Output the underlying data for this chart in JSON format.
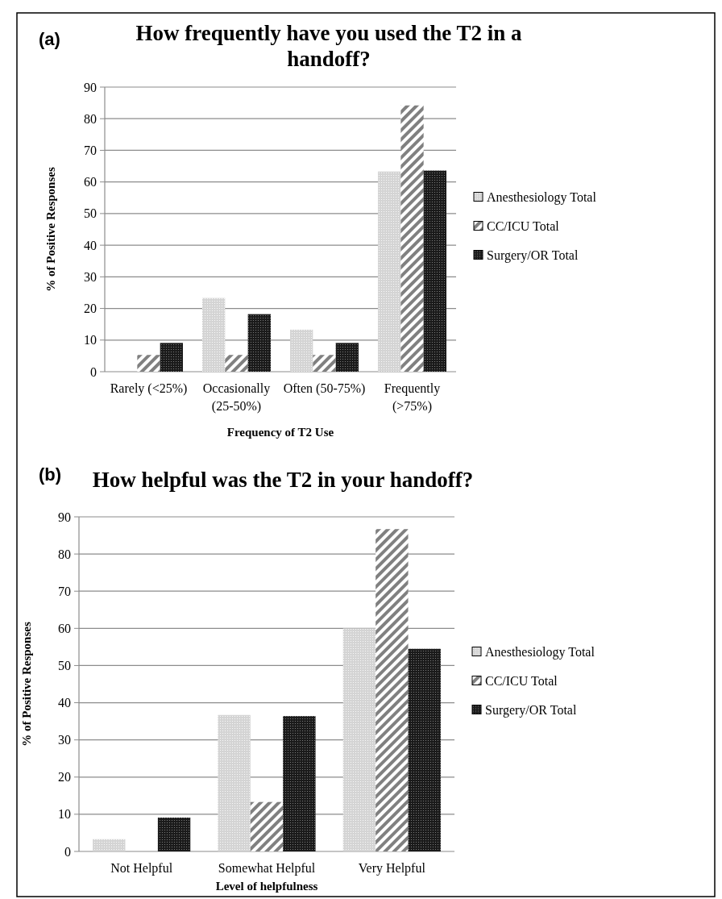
{
  "chart_data": [
    {
      "type": "bar",
      "title": "How frequently have you used the T2 in a handoff?",
      "xlabel": "Frequency of T2 Use",
      "ylabel": "% of Positive Responses",
      "annotations": [
        "(a)"
      ],
      "categories": [
        "Rarely (<25%)",
        "Occasionally (25-50%)",
        "Often (50-75%)",
        "Frequently (>75%)"
      ],
      "series": [
        {
          "name": "Anesthesiology Total",
          "color": "#d4d4d4",
          "values": [
            0,
            23.3,
            13.3,
            63.3
          ]
        },
        {
          "name": "CC/ICU Total",
          "color": "#808080",
          "values": [
            5.3,
            5.3,
            5.3,
            84.2
          ]
        },
        {
          "name": "Surgery/OR Total",
          "color": "#1a1a1a",
          "values": [
            9.1,
            18.2,
            9.1,
            63.6
          ]
        }
      ],
      "ylim": [
        0,
        90
      ],
      "yticks": [
        0,
        10,
        20,
        30,
        40,
        50,
        60,
        70,
        80,
        90
      ],
      "grid": "y",
      "legend": "right"
    },
    {
      "type": "bar",
      "title": "How helpful was the T2 in your handoff?",
      "xlabel": "Level of helpfulness",
      "ylabel": "% of Positive Responses",
      "annotations": [
        "(b)"
      ],
      "categories": [
        "Not Helpful",
        "Somewhat Helpful",
        "Very Helpful"
      ],
      "series": [
        {
          "name": "Anesthesiology Total",
          "color": "#d4d4d4",
          "values": [
            3.3,
            36.7,
            60
          ]
        },
        {
          "name": "CC/ICU Total",
          "color": "#808080",
          "values": [
            0,
            13.3,
            86.7
          ]
        },
        {
          "name": "Surgery/OR Total",
          "color": "#1a1a1a",
          "values": [
            9.1,
            36.4,
            54.5
          ]
        }
      ],
      "ylim": [
        0,
        90
      ],
      "yticks": [
        0,
        10,
        20,
        30,
        40,
        50,
        60,
        70,
        80,
        90
      ],
      "grid": "y",
      "legend": "right"
    }
  ]
}
